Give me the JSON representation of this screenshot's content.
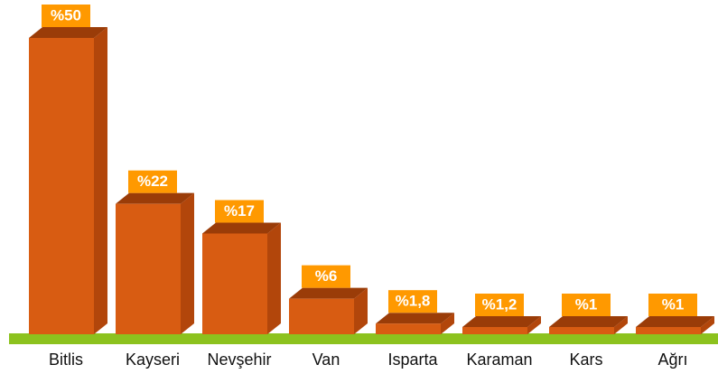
{
  "chart_data": {
    "type": "bar3d",
    "categories": [
      "Bitlis",
      "Kayseri",
      "Nevşehir",
      "Van",
      "Isparta",
      "Karaman",
      "Kars",
      "Ağrı"
    ],
    "values": [
      50,
      22,
      17,
      6,
      1.8,
      1.2,
      1,
      1
    ],
    "value_labels": [
      "%50",
      "%22",
      "%17",
      "%6",
      "%1,8",
      "%1,2",
      "%1",
      "%1"
    ],
    "color": "#d85c12"
  }
}
